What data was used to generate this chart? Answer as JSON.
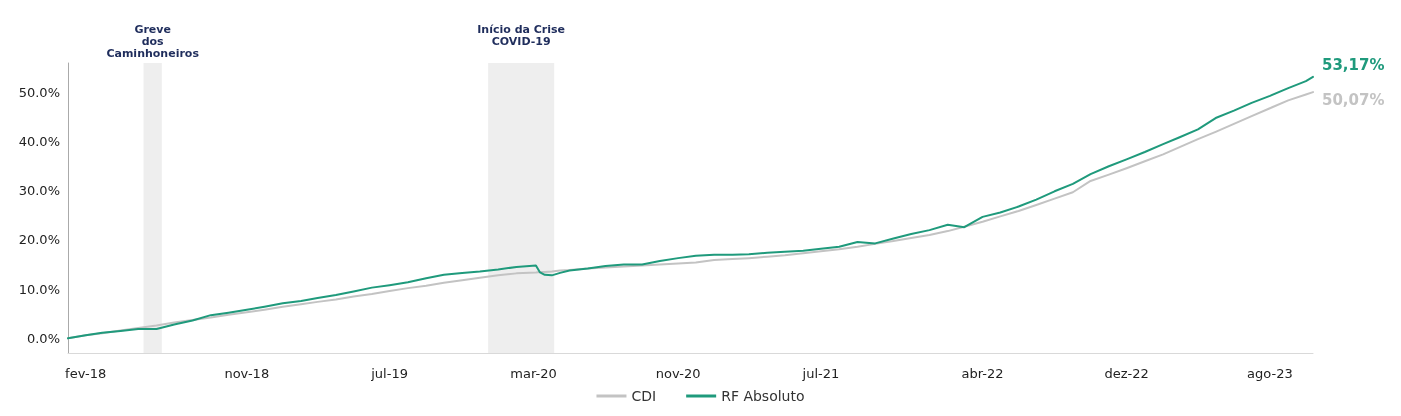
{
  "chart_data": {
    "type": "line",
    "x": [
      "2018-01-02",
      "2018-02-01",
      "2018-03-01",
      "2018-04-01",
      "2018-05-01",
      "2018-06-01",
      "2018-07-01",
      "2018-08-01",
      "2018-09-01",
      "2018-10-01",
      "2018-11-01",
      "2018-12-01",
      "2019-01-01",
      "2019-02-01",
      "2019-03-01",
      "2019-04-01",
      "2019-05-01",
      "2019-06-01",
      "2019-07-01",
      "2019-08-01",
      "2019-09-01",
      "2019-10-01",
      "2019-11-01",
      "2019-12-01",
      "2020-01-01",
      "2020-02-01",
      "2020-03-05",
      "2020-03-12",
      "2020-03-20",
      "2020-04-01",
      "2020-04-15",
      "2020-05-01",
      "2020-06-01",
      "2020-07-01",
      "2020-08-01",
      "2020-09-01",
      "2020-10-01",
      "2020-11-01",
      "2020-12-01",
      "2021-01-01",
      "2021-02-01",
      "2021-03-01",
      "2021-04-01",
      "2021-05-01",
      "2021-06-01",
      "2021-07-01",
      "2021-08-01",
      "2021-09-01",
      "2021-10-01",
      "2021-11-01",
      "2021-12-01",
      "2022-01-01",
      "2022-02-01",
      "2022-03-01",
      "2022-04-01",
      "2022-05-01",
      "2022-06-01",
      "2022-07-01",
      "2022-08-01",
      "2022-09-01",
      "2022-10-01",
      "2022-11-01",
      "2022-12-01",
      "2023-01-01",
      "2023-02-01",
      "2023-03-01",
      "2023-04-01",
      "2023-05-01",
      "2023-06-01",
      "2023-07-01",
      "2023-08-01",
      "2023-09-01",
      "2023-10-01",
      "2023-10-13"
    ],
    "series": [
      {
        "name": "CDI",
        "color": "#c3c3c3",
        "values": [
          0,
          0.6,
          1.0,
          1.6,
          2.1,
          2.6,
          3.2,
          3.7,
          4.2,
          4.8,
          5.3,
          5.8,
          6.4,
          6.9,
          7.4,
          7.9,
          8.5,
          9.0,
          9.6,
          10.2,
          10.7,
          11.3,
          11.8,
          12.3,
          12.8,
          13.2,
          13.4,
          13.5,
          13.5,
          13.6,
          13.8,
          13.9,
          14.2,
          14.4,
          14.6,
          14.8,
          15.0,
          15.2,
          15.4,
          15.9,
          16.1,
          16.3,
          16.6,
          16.9,
          17.3,
          17.7,
          18.1,
          18.6,
          19.2,
          19.8,
          20.4,
          21.0,
          21.8,
          22.7,
          23.7,
          24.8,
          25.9,
          27.1,
          28.4,
          29.7,
          32.0,
          33.3,
          34.6,
          36.0,
          37.4,
          38.9,
          40.5,
          42.0,
          43.6,
          45.2,
          46.8,
          48.4,
          49.6,
          50.07
        ],
        "value_labels": [
          null,
          null,
          null,
          null,
          null,
          null,
          null,
          null,
          null,
          null,
          null,
          null,
          null,
          null,
          null,
          null,
          null,
          null,
          null,
          null,
          null,
          null,
          null,
          null,
          null,
          null,
          null,
          null,
          null,
          null,
          null,
          null,
          null,
          null,
          null,
          null,
          null,
          null,
          null,
          null,
          null,
          null,
          null,
          null,
          null,
          null,
          null,
          null,
          null,
          null,
          null,
          null,
          null,
          null,
          null,
          null,
          null,
          null,
          null,
          null,
          null,
          null,
          null,
          null,
          null,
          null,
          null,
          null,
          null,
          null,
          null,
          null,
          null,
          "50,07%"
        ]
      },
      {
        "name": "RF Absoluto",
        "color": "#1f9a7c",
        "values": [
          0,
          0.6,
          1.1,
          1.5,
          1.9,
          1.9,
          2.8,
          3.6,
          4.7,
          5.2,
          5.8,
          6.4,
          7.1,
          7.6,
          8.2,
          8.8,
          9.5,
          10.3,
          10.8,
          11.4,
          12.2,
          12.9,
          13.3,
          13.6,
          14.0,
          14.5,
          14.8,
          13.4,
          12.9,
          12.8,
          13.3,
          13.8,
          14.2,
          14.7,
          15.0,
          15.0,
          15.7,
          16.3,
          16.8,
          17.0,
          17.0,
          17.1,
          17.4,
          17.6,
          17.8,
          18.2,
          18.6,
          19.6,
          19.3,
          20.3,
          21.2,
          22.0,
          23.1,
          22.6,
          24.7,
          25.6,
          26.8,
          28.2,
          29.9,
          31.4,
          33.4,
          35.0,
          36.4,
          37.9,
          39.5,
          40.9,
          42.5,
          44.8,
          46.3,
          47.9,
          49.3,
          50.9,
          52.3,
          53.17
        ],
        "value_labels": [
          null,
          null,
          null,
          null,
          null,
          null,
          null,
          null,
          null,
          null,
          null,
          null,
          null,
          null,
          null,
          null,
          null,
          null,
          null,
          null,
          null,
          null,
          null,
          null,
          null,
          null,
          null,
          null,
          null,
          null,
          null,
          null,
          null,
          null,
          null,
          null,
          null,
          null,
          null,
          null,
          null,
          null,
          null,
          null,
          null,
          null,
          null,
          null,
          null,
          null,
          null,
          null,
          null,
          null,
          null,
          null,
          null,
          null,
          null,
          null,
          null,
          null,
          null,
          null,
          null,
          null,
          null,
          null,
          null,
          null,
          null,
          null,
          null,
          "53,17%"
        ]
      }
    ],
    "xticks": [
      {
        "value": "2018-02-01",
        "label": "fev-18"
      },
      {
        "value": "2018-11-01",
        "label": "nov-18"
      },
      {
        "value": "2019-07-01",
        "label": "jul-19"
      },
      {
        "value": "2020-03-01",
        "label": "mar-20"
      },
      {
        "value": "2020-11-01",
        "label": "nov-20"
      },
      {
        "value": "2021-07-01",
        "label": "jul-21"
      },
      {
        "value": "2022-04-01",
        "label": "abr-22"
      },
      {
        "value": "2022-12-01",
        "label": "dez-22"
      },
      {
        "value": "2023-08-01",
        "label": "ago-23"
      }
    ],
    "xlim": [
      "2018-01-02",
      "2023-10-13"
    ],
    "ylim": [
      -3,
      56
    ],
    "yticks": [
      {
        "value": 0,
        "label": "0.0%"
      },
      {
        "value": 10,
        "label": "10.0%"
      },
      {
        "value": 20,
        "label": "20.0%"
      },
      {
        "value": 30,
        "label": "30.0%"
      },
      {
        "value": 40,
        "label": "40.0%"
      },
      {
        "value": 50,
        "label": "50.0%"
      }
    ],
    "bands": [
      {
        "axis": "x",
        "from": "2018-05-10",
        "to": "2018-06-10",
        "label": "Greve\ndos\nCaminhoneiros",
        "color": "#eeeeee"
      },
      {
        "axis": "x",
        "from": "2019-12-15",
        "to": "2020-04-05",
        "label": "Início da Crise\nCOVID-19",
        "color": "#eeeeee"
      }
    ],
    "grid": false,
    "legend": "bottom",
    "marker": "none",
    "line_style": "solid"
  }
}
